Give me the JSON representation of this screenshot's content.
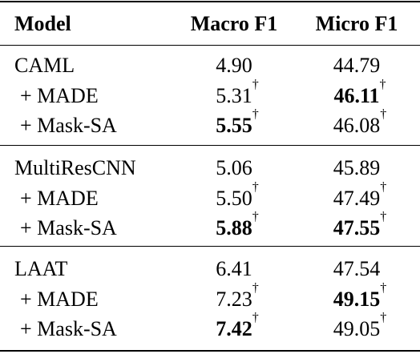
{
  "table": {
    "header": [
      "Model",
      "Macro F1",
      "Micro F1"
    ],
    "groups": [
      {
        "rows": [
          {
            "model": "CAML",
            "macro": {
              "text": "4.90",
              "bold": false
            },
            "micro": {
              "text": "44.79",
              "bold": false
            }
          },
          {
            "model": "+ MADE",
            "macro": {
              "text": "5.31",
              "mark": "†",
              "bold": false
            },
            "micro": {
              "text": "46.11",
              "mark": "†",
              "bold": true
            }
          },
          {
            "model": "+ Mask-SA",
            "macro": {
              "text": "5.55",
              "mark": "†",
              "bold": true
            },
            "micro": {
              "text": "46.08",
              "mark": "†",
              "bold": false
            }
          }
        ]
      },
      {
        "rows": [
          {
            "model": "MultiResCNN",
            "macro": {
              "text": "5.06",
              "bold": false
            },
            "micro": {
              "text": "45.89",
              "bold": false
            }
          },
          {
            "model": "+ MADE",
            "macro": {
              "text": "5.50",
              "mark": "†",
              "bold": false
            },
            "micro": {
              "text": "47.49",
              "mark": "†",
              "bold": false
            }
          },
          {
            "model": "+ Mask-SA",
            "macro": {
              "text": "5.88",
              "mark": "†",
              "bold": true
            },
            "micro": {
              "text": "47.55",
              "mark": "†",
              "bold": true
            }
          }
        ]
      },
      {
        "rows": [
          {
            "model": "LAAT",
            "macro": {
              "text": "6.41",
              "bold": false
            },
            "micro": {
              "text": "47.54",
              "bold": false
            }
          },
          {
            "model": "+ MADE",
            "macro": {
              "text": "7.23",
              "mark": "†",
              "bold": false
            },
            "micro": {
              "text": "49.15",
              "mark": "†",
              "bold": true
            }
          },
          {
            "model": "+ Mask-SA",
            "macro": {
              "text": "7.42",
              "mark": "†",
              "bold": true
            },
            "micro": {
              "text": "49.05",
              "mark": "†",
              "bold": false
            }
          }
        ]
      }
    ]
  }
}
